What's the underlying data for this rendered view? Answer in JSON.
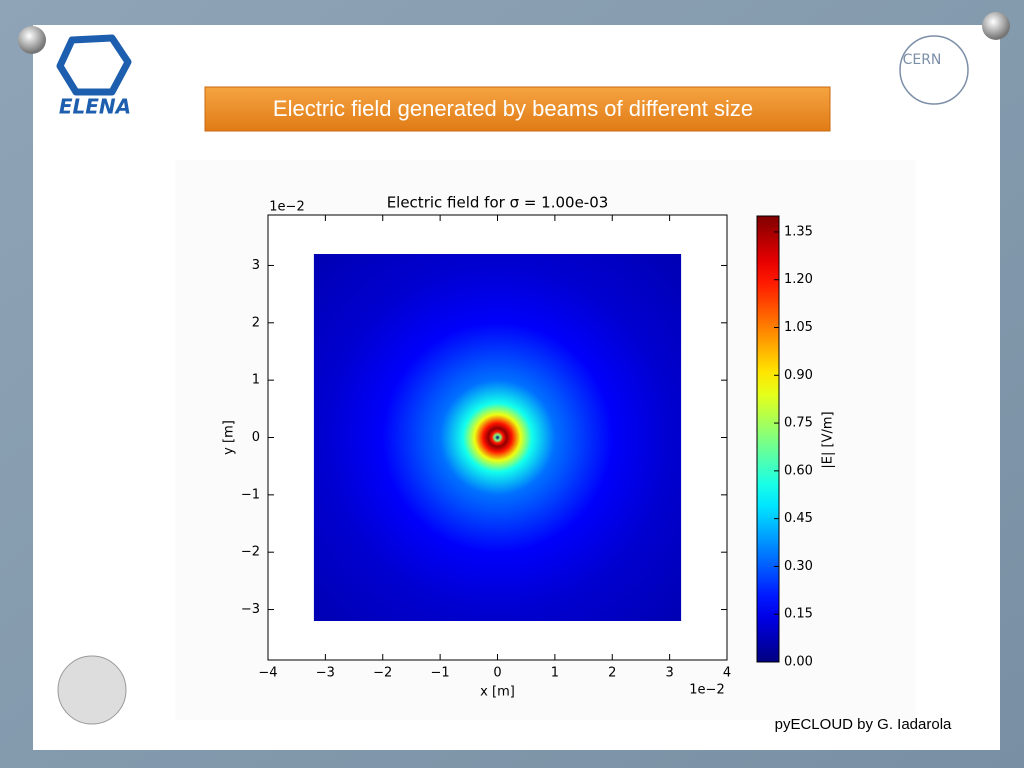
{
  "slide": {
    "title": "Electric  field generated by beams of different size",
    "credit": "pyECLOUD by G. Iadarola",
    "logos": {
      "left": "ELENA",
      "right": "CERN"
    }
  },
  "chart_data": {
    "type": "heatmap",
    "title": "Electric field for σ = 1.00e-03",
    "x_label": "x [m]",
    "y_label": "y [m]",
    "x_offset_label": "1e−2",
    "y_offset_label": "1e−2",
    "xlim": [
      -4,
      4
    ],
    "ylim": [
      -3.88,
      3.88
    ],
    "xticks": [
      {
        "value": -4,
        "label": "−4"
      },
      {
        "value": -3,
        "label": "−3"
      },
      {
        "value": -2,
        "label": "−2"
      },
      {
        "value": -1,
        "label": "−1"
      },
      0,
      1,
      2,
      3,
      4
    ],
    "yticks": [
      {
        "value": -3,
        "label": "−3"
      },
      {
        "value": -2,
        "label": "−2"
      },
      {
        "value": -1,
        "label": "−1"
      },
      0,
      1,
      2,
      3
    ],
    "extent": [
      -3.2,
      3.2,
      -3.2,
      3.2
    ],
    "profile": {
      "r": [
        0,
        0.05,
        0.1,
        0.16,
        0.25,
        0.4,
        0.6,
        1,
        2,
        3,
        4.5
      ],
      "values": [
        0,
        0.7,
        1.2,
        1.38,
        1.2,
        0.85,
        0.55,
        0.33,
        0.17,
        0.11,
        0.07
      ]
    },
    "colormap": "jet",
    "clim": [
      0,
      1.4
    ],
    "colorbar_label": "|E| [V/m]",
    "colorbar_ticks": [
      {
        "value": 0,
        "label": "0.00"
      },
      0.15,
      {
        "value": 0.3,
        "label": "0.30"
      },
      0.45,
      {
        "value": 0.6,
        "label": "0.60"
      },
      0.75,
      {
        "value": 0.9,
        "label": "0.90"
      },
      1.05,
      {
        "value": 1.2,
        "label": "1.20"
      },
      1.35
    ]
  }
}
